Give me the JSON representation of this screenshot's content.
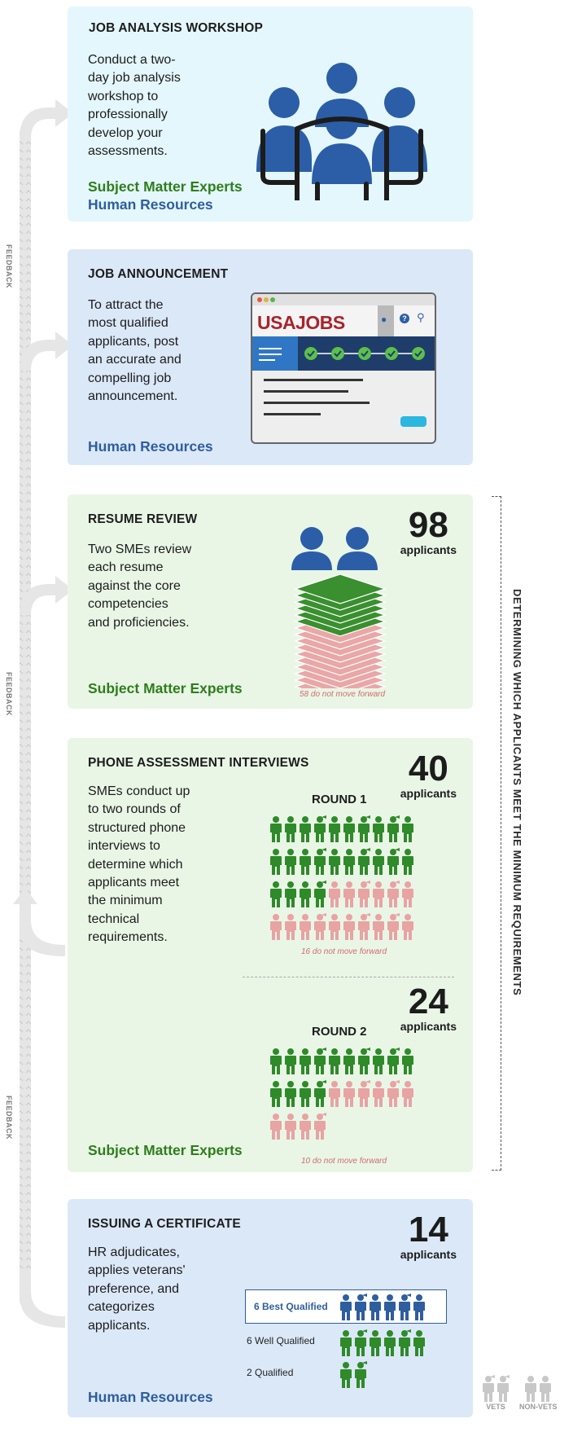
{
  "feedback_label": "FEEDBACK",
  "bracket_label": "DETERMINING WHICH APPLICANTS MEET THE MINIMUM REQUIREMENTS",
  "steps": {
    "workshop": {
      "title": "JOB ANALYSIS WORKSHOP",
      "description": "Conduct a two-\nday job analysis\nworkshop to\nprofessionally\ndevelop your\nassessments.",
      "roles": [
        "Subject Matter Experts",
        "Human Resources"
      ]
    },
    "announcement": {
      "title": "JOB ANNOUNCEMENT",
      "description": "To attract the\nmost qualified\napplicants, post\nan accurate and\ncompelling job\nannouncement.",
      "roles": [
        "Human Resources"
      ],
      "browser": {
        "logo": "USAJOBS",
        "checkpoints": 5
      }
    },
    "resume": {
      "title": "RESUME REVIEW",
      "description": "Two SMEs review\neach resume\nagainst the core\ncompetencies\nand proficiencies.",
      "roles": [
        "Subject Matter Experts"
      ],
      "applicants": "98",
      "applicants_label": "applicants",
      "note": "58 do not  move forward"
    },
    "phone": {
      "title": "PHONE ASSESSMENT INTERVIEWS",
      "description": "SMEs conduct up\nto two rounds of\nstructured phone\ninterviews to\ndetermine which\napplicants meet\nthe minimum\ntechnical\nrequirements.",
      "roles": [
        "Subject Matter Experts"
      ],
      "round1": {
        "label": "ROUND 1",
        "applicants": "40",
        "applicants_label": "applicants",
        "note": "16 do not move forward",
        "pass": 24,
        "total": 40
      },
      "round2": {
        "label": "ROUND 2",
        "applicants": "24",
        "applicants_label": "applicants",
        "note": "10 do not move forward",
        "pass": 14,
        "total": 24
      }
    },
    "certificate": {
      "title": "ISSUING A CERTIFICATE",
      "description": "HR adjudicates,\napplies veterans'\npreference, and\ncategorizes\napplicants.",
      "roles": [
        "Human Resources"
      ],
      "applicants": "14",
      "applicants_label": "applicants",
      "categories": [
        {
          "label": "6 Best Qualified",
          "count": 6
        },
        {
          "label": "6 Well Qualified",
          "count": 6
        },
        {
          "label": "2 Qualified",
          "count": 2
        }
      ],
      "legend": [
        "VETS",
        "NON-VETS"
      ]
    }
  },
  "colors": {
    "green": "#2f8a2a",
    "pink": "#e8a3a3",
    "blue": "#2e5e9e",
    "grey": "#c8c8c8"
  }
}
